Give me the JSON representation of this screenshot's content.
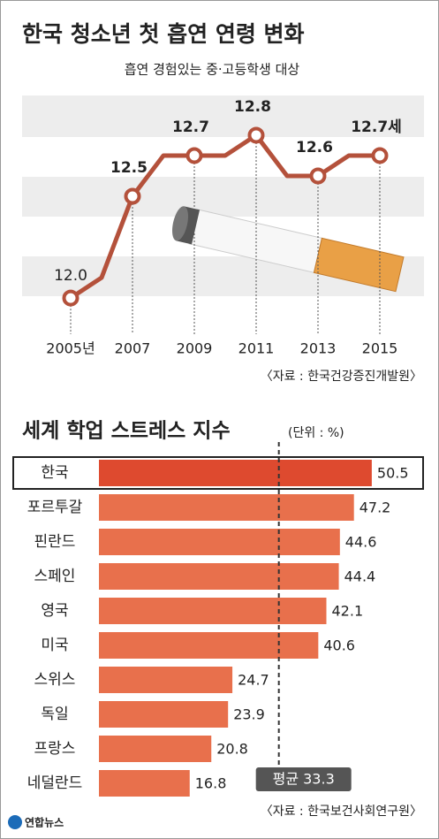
{
  "chart_data": [
    {
      "type": "line",
      "title": "한국 청소년 첫 흡연 연령 변화",
      "subtitle": "흡연 경험있는 중·고등학생 대상",
      "x": [
        2005,
        2006,
        2007,
        2008,
        2009,
        2010,
        2011,
        2012,
        2013,
        2014,
        2015
      ],
      "values": [
        12.0,
        12.1,
        12.5,
        12.7,
        12.7,
        12.7,
        12.8,
        12.6,
        12.6,
        12.7,
        12.7
      ],
      "value_labels": [
        "12.0",
        null,
        "12.5",
        null,
        "12.7",
        null,
        "12.8",
        null,
        "12.6",
        null,
        "12.7세"
      ],
      "color": "#b4513b",
      "xlim": [
        2003,
        2016.4
      ],
      "ylim": [
        11.97,
        13.03
      ],
      "xticks": [
        {
          "value": 2005,
          "label": "2005년"
        },
        2007,
        2009,
        2011,
        2013,
        2015
      ],
      "source": "〈자료 : 한국건강증진개발원〉"
    },
    {
      "type": "bar",
      "title": "세계 학업 스트레스 지수",
      "unit": "(단위 : %)",
      "categories": [
        "한국",
        "포르투갈",
        "핀란드",
        "스페인",
        "영국",
        "미국",
        "스위스",
        "독일",
        "프랑스",
        "네덜란드"
      ],
      "values": [
        50.5,
        47.2,
        44.6,
        44.4,
        42.1,
        40.6,
        24.7,
        23.9,
        20.8,
        16.8
      ],
      "colors": [
        "#de4a2f",
        "#e8704c",
        "#e8704c",
        "#e8704c",
        "#e8704c",
        "#e8704c",
        "#e8704c",
        "#e8704c",
        "#e8704c",
        "#e8704c"
      ],
      "xlim": [
        0,
        60
      ],
      "average": {
        "value": 33.3,
        "label": "평균 33.3"
      },
      "source": "〈자료 : 한국보건사회연구원〉"
    }
  ],
  "logo": "연합뉴스"
}
